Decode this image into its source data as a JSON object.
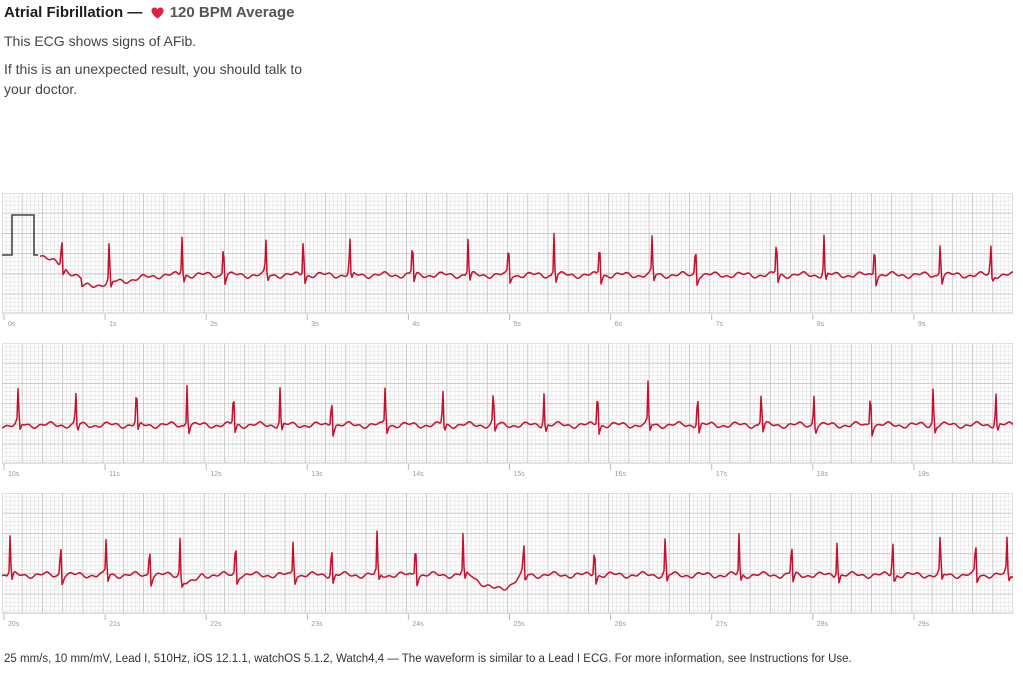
{
  "header": {
    "diagnosis": "Atrial Fibrillation",
    "separator": "—",
    "heart_icon": "heart-icon",
    "bpm_text": "120 BPM Average"
  },
  "summary": "This ECG shows signs of AFib.",
  "advice": "If this is an unexpected result, you should talk to your doctor.",
  "colors": {
    "waveform": "#c8102e",
    "grid_minor": "#dcdcdc",
    "grid_major": "#c4c4c4",
    "heart": "#e0203c"
  },
  "strips": [
    {
      "labels": [
        "0s",
        "1s",
        "2s",
        "3s",
        "4s",
        "5s",
        "6s",
        "7s",
        "8s",
        "9s"
      ],
      "beats": [
        0.58,
        1.05,
        1.77,
        2.18,
        2.6,
        2.97,
        3.43,
        4.05,
        4.6,
        5.0,
        5.45,
        5.9,
        6.42,
        6.85,
        7.65,
        8.12,
        8.62,
        9.27,
        9.77
      ]
    },
    {
      "labels": [
        "10s",
        "11s",
        "12s",
        "13s",
        "14s",
        "15s",
        "16s",
        "17s",
        "18s",
        "19s"
      ],
      "beats": [
        10.15,
        10.72,
        11.32,
        11.82,
        12.28,
        12.74,
        13.25,
        13.78,
        14.35,
        14.85,
        15.35,
        15.88,
        16.38,
        16.87,
        17.5,
        18.02,
        18.58,
        19.2,
        19.82
      ]
    },
    {
      "labels": [
        "20s",
        "21s",
        "22s",
        "23s",
        "24s",
        "25s",
        "26s",
        "27s",
        "28s",
        "29s"
      ],
      "beats": [
        20.07,
        20.57,
        21.02,
        21.45,
        21.75,
        22.3,
        22.87,
        23.25,
        23.7,
        24.08,
        24.55,
        25.15,
        25.85,
        26.55,
        27.28,
        27.8,
        28.25,
        28.8,
        29.27,
        29.62,
        29.93
      ]
    }
  ],
  "footnote": "25 mm/s, 10 mm/mV, Lead I, 510Hz, iOS 12.1.1, watchOS 5.1.2, Watch4,4 — The waveform is similar to a Lead I ECG. For more information, see Instructions for Use."
}
